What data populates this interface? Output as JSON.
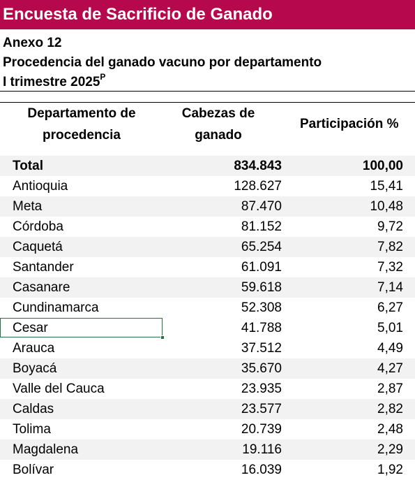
{
  "banner": {
    "title": "Encuesta de Sacrificio de Ganado"
  },
  "header": {
    "annex": "Anexo 12",
    "subtitle": "Procedencia del ganado vacuno por departamento",
    "period": "I trimestre 2025",
    "period_mark": "P"
  },
  "table": {
    "columns": {
      "dep_line1": "Departamento de",
      "dep_line2": "procedencia",
      "cab_line1": "Cabezas de",
      "cab_line2": "ganado",
      "par": "Participación %"
    },
    "total": {
      "label": "Total",
      "cabezas": "834.843",
      "participacion": "100,00"
    },
    "rows": [
      {
        "departamento": "Antioquia",
        "cabezas": "128.627",
        "participacion": "15,41"
      },
      {
        "departamento": "Meta",
        "cabezas": "87.470",
        "participacion": "10,48"
      },
      {
        "departamento": "Córdoba",
        "cabezas": "81.152",
        "participacion": "9,72"
      },
      {
        "departamento": "Caquetá",
        "cabezas": "65.254",
        "participacion": "7,82"
      },
      {
        "departamento": "Santander",
        "cabezas": "61.091",
        "participacion": "7,32"
      },
      {
        "departamento": "Casanare",
        "cabezas": "59.618",
        "participacion": "7,14"
      },
      {
        "departamento": "Cundinamarca",
        "cabezas": "52.308",
        "participacion": "6,27"
      },
      {
        "departamento": "Cesar",
        "cabezas": "41.788",
        "participacion": "5,01"
      },
      {
        "departamento": "Arauca",
        "cabezas": "37.512",
        "participacion": "4,49"
      },
      {
        "departamento": "Boyacá",
        "cabezas": "35.670",
        "participacion": "4,27"
      },
      {
        "departamento": "Valle del Cauca",
        "cabezas": "23.935",
        "participacion": "2,87"
      },
      {
        "departamento": "Caldas",
        "cabezas": "23.577",
        "participacion": "2,82"
      },
      {
        "departamento": "Tolima",
        "cabezas": "20.739",
        "participacion": "2,48"
      },
      {
        "departamento": "Magdalena",
        "cabezas": "19.116",
        "participacion": "2,29"
      },
      {
        "departamento": "Bolívar",
        "cabezas": "16.039",
        "participacion": "1,92"
      }
    ]
  }
}
